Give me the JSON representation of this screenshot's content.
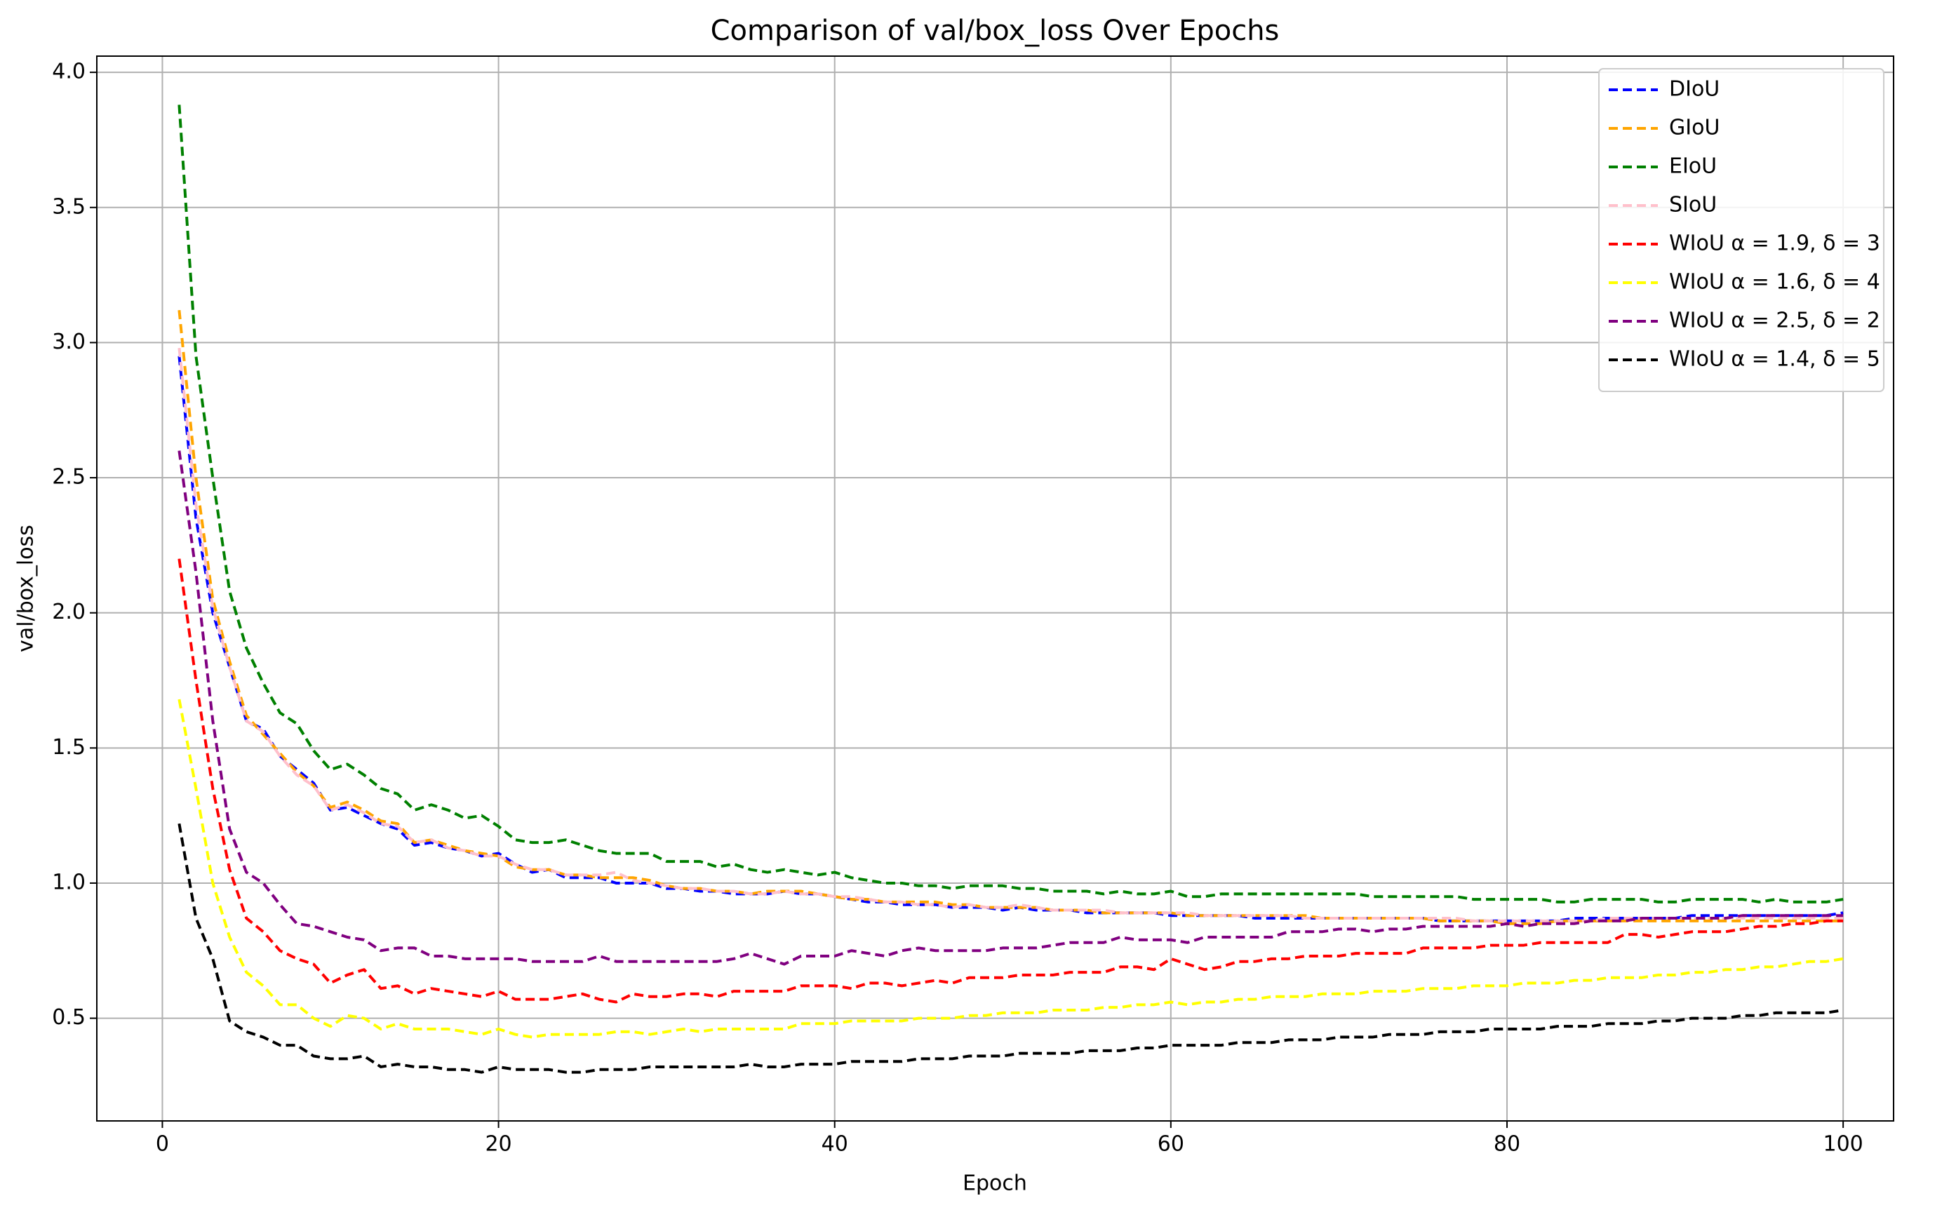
{
  "chart_data": {
    "type": "line",
    "title": "Comparison of val/box_loss Over Epochs",
    "xlabel": "Epoch",
    "ylabel": "val/box_loss",
    "x": [
      1,
      2,
      3,
      4,
      5,
      6,
      7,
      8,
      9,
      10,
      11,
      12,
      13,
      14,
      15,
      16,
      17,
      18,
      19,
      20,
      21,
      22,
      23,
      24,
      25,
      26,
      27,
      28,
      29,
      30,
      31,
      32,
      33,
      34,
      35,
      36,
      37,
      38,
      39,
      40,
      41,
      42,
      43,
      44,
      45,
      46,
      47,
      48,
      49,
      50,
      51,
      52,
      53,
      54,
      55,
      56,
      57,
      58,
      59,
      60,
      61,
      62,
      63,
      64,
      65,
      66,
      67,
      68,
      69,
      70,
      71,
      72,
      73,
      74,
      75,
      76,
      77,
      78,
      79,
      80,
      81,
      82,
      83,
      84,
      85,
      86,
      87,
      88,
      89,
      90,
      91,
      92,
      93,
      94,
      95,
      96,
      97,
      98,
      99,
      100
    ],
    "xlim": [
      -3.9,
      103
    ],
    "ylim": [
      0.12,
      4.06
    ],
    "xticks": [
      0,
      20,
      40,
      60,
      80,
      100
    ],
    "yticks": [
      0.5,
      {
        "value": 1,
        "label": "1.0"
      },
      1.5,
      {
        "value": 2,
        "label": "2.0"
      },
      2.5,
      {
        "value": 3,
        "label": "3.0"
      },
      3.5,
      {
        "value": 4,
        "label": "4.0"
      }
    ],
    "grid": true,
    "legend": "upper right",
    "line_style": "dashed",
    "series": [
      {
        "name": "DIoU",
        "color": "#0000ff",
        "values": [
          2.95,
          2.35,
          2.0,
          1.8,
          1.6,
          1.57,
          1.47,
          1.42,
          1.37,
          1.27,
          1.28,
          1.25,
          1.22,
          1.2,
          1.14,
          1.15,
          1.13,
          1.12,
          1.1,
          1.11,
          1.07,
          1.04,
          1.05,
          1.02,
          1.02,
          1.02,
          1.0,
          1.0,
          1.0,
          0.98,
          0.98,
          0.97,
          0.97,
          0.96,
          0.96,
          0.96,
          0.97,
          0.96,
          0.96,
          0.95,
          0.94,
          0.93,
          0.93,
          0.92,
          0.92,
          0.92,
          0.91,
          0.91,
          0.91,
          0.9,
          0.91,
          0.9,
          0.9,
          0.9,
          0.89,
          0.89,
          0.89,
          0.89,
          0.89,
          0.88,
          0.88,
          0.88,
          0.88,
          0.88,
          0.87,
          0.87,
          0.87,
          0.87,
          0.87,
          0.87,
          0.87,
          0.87,
          0.87,
          0.87,
          0.87,
          0.86,
          0.86,
          0.86,
          0.86,
          0.86,
          0.86,
          0.86,
          0.86,
          0.87,
          0.87,
          0.87,
          0.87,
          0.87,
          0.87,
          0.87,
          0.88,
          0.88,
          0.88,
          0.88,
          0.88,
          0.88,
          0.88,
          0.88,
          0.88,
          0.89
        ]
      },
      {
        "name": "GIoU",
        "color": "#ffa500",
        "values": [
          3.12,
          2.5,
          2.05,
          1.82,
          1.62,
          1.55,
          1.48,
          1.41,
          1.36,
          1.28,
          1.3,
          1.27,
          1.23,
          1.22,
          1.15,
          1.16,
          1.14,
          1.12,
          1.11,
          1.1,
          1.06,
          1.05,
          1.05,
          1.03,
          1.03,
          1.02,
          1.02,
          1.02,
          1.01,
          0.99,
          0.98,
          0.98,
          0.97,
          0.97,
          0.96,
          0.97,
          0.97,
          0.97,
          0.96,
          0.95,
          0.94,
          0.94,
          0.93,
          0.93,
          0.93,
          0.93,
          0.92,
          0.92,
          0.91,
          0.91,
          0.91,
          0.91,
          0.9,
          0.9,
          0.9,
          0.89,
          0.89,
          0.89,
          0.89,
          0.89,
          0.88,
          0.88,
          0.88,
          0.88,
          0.88,
          0.88,
          0.88,
          0.88,
          0.87,
          0.87,
          0.87,
          0.87,
          0.87,
          0.87,
          0.87,
          0.86,
          0.86,
          0.86,
          0.86,
          0.85,
          0.85,
          0.85,
          0.86,
          0.86,
          0.86,
          0.86,
          0.86,
          0.86,
          0.86,
          0.86,
          0.86,
          0.86,
          0.86,
          0.86,
          0.86,
          0.86,
          0.86,
          0.86,
          0.86,
          0.86
        ]
      },
      {
        "name": "EIoU",
        "color": "#008000",
        "values": [
          3.88,
          2.95,
          2.5,
          2.08,
          1.87,
          1.74,
          1.63,
          1.59,
          1.49,
          1.42,
          1.44,
          1.4,
          1.35,
          1.33,
          1.27,
          1.29,
          1.27,
          1.24,
          1.25,
          1.21,
          1.16,
          1.15,
          1.15,
          1.16,
          1.14,
          1.12,
          1.11,
          1.11,
          1.11,
          1.08,
          1.08,
          1.08,
          1.06,
          1.07,
          1.05,
          1.04,
          1.05,
          1.04,
          1.03,
          1.04,
          1.02,
          1.01,
          1.0,
          1.0,
          0.99,
          0.99,
          0.98,
          0.99,
          0.99,
          0.99,
          0.98,
          0.98,
          0.97,
          0.97,
          0.97,
          0.96,
          0.97,
          0.96,
          0.96,
          0.97,
          0.95,
          0.95,
          0.96,
          0.96,
          0.96,
          0.96,
          0.96,
          0.96,
          0.96,
          0.96,
          0.96,
          0.95,
          0.95,
          0.95,
          0.95,
          0.95,
          0.95,
          0.94,
          0.94,
          0.94,
          0.94,
          0.94,
          0.93,
          0.93,
          0.94,
          0.94,
          0.94,
          0.94,
          0.93,
          0.93,
          0.94,
          0.94,
          0.94,
          0.94,
          0.93,
          0.94,
          0.93,
          0.93,
          0.93,
          0.94
        ]
      },
      {
        "name": "SIoU",
        "color": "#ffc0cb",
        "values": [
          2.98,
          2.4,
          2.02,
          1.8,
          1.6,
          1.56,
          1.47,
          1.4,
          1.36,
          1.27,
          1.29,
          1.26,
          1.22,
          1.21,
          1.15,
          1.16,
          1.13,
          1.12,
          1.1,
          1.1,
          1.07,
          1.05,
          1.05,
          1.03,
          1.03,
          1.03,
          1.04,
          1.01,
          1.0,
          0.99,
          0.98,
          0.98,
          0.97,
          0.97,
          0.96,
          0.96,
          0.97,
          0.96,
          0.96,
          0.95,
          0.95,
          0.94,
          0.93,
          0.93,
          0.92,
          0.92,
          0.91,
          0.92,
          0.91,
          0.91,
          0.92,
          0.91,
          0.9,
          0.9,
          0.9,
          0.9,
          0.89,
          0.89,
          0.89,
          0.89,
          0.89,
          0.88,
          0.88,
          0.88,
          0.88,
          0.88,
          0.88,
          0.87,
          0.87,
          0.87,
          0.87,
          0.87,
          0.87,
          0.87,
          0.87,
          0.87,
          0.87,
          0.86,
          0.86,
          0.86,
          0.86,
          0.86,
          0.86,
          0.86,
          0.86,
          0.87,
          0.87,
          0.87,
          0.87,
          0.87,
          0.87,
          0.87,
          0.87,
          0.87,
          0.87,
          0.87,
          0.87,
          0.87,
          0.87,
          0.87
        ]
      },
      {
        "name": "WIoU α = 1.9,  δ = 3",
        "color": "#ff0000",
        "values": [
          2.2,
          1.75,
          1.35,
          1.05,
          0.87,
          0.82,
          0.75,
          0.72,
          0.7,
          0.63,
          0.66,
          0.68,
          0.61,
          0.62,
          0.59,
          0.61,
          0.6,
          0.59,
          0.58,
          0.6,
          0.57,
          0.57,
          0.57,
          0.58,
          0.59,
          0.57,
          0.56,
          0.59,
          0.58,
          0.58,
          0.59,
          0.59,
          0.58,
          0.6,
          0.6,
          0.6,
          0.6,
          0.62,
          0.62,
          0.62,
          0.61,
          0.63,
          0.63,
          0.62,
          0.63,
          0.64,
          0.63,
          0.65,
          0.65,
          0.65,
          0.66,
          0.66,
          0.66,
          0.67,
          0.67,
          0.67,
          0.69,
          0.69,
          0.68,
          0.72,
          0.7,
          0.68,
          0.69,
          0.71,
          0.71,
          0.72,
          0.72,
          0.73,
          0.73,
          0.73,
          0.74,
          0.74,
          0.74,
          0.74,
          0.76,
          0.76,
          0.76,
          0.76,
          0.77,
          0.77,
          0.77,
          0.78,
          0.78,
          0.78,
          0.78,
          0.78,
          0.81,
          0.81,
          0.8,
          0.81,
          0.82,
          0.82,
          0.82,
          0.83,
          0.84,
          0.84,
          0.85,
          0.85,
          0.86,
          0.86
        ]
      },
      {
        "name": "WIoU α = 1.6,  δ = 4",
        "color": "#ffff00",
        "values": [
          1.68,
          1.35,
          1.0,
          0.8,
          0.67,
          0.62,
          0.55,
          0.55,
          0.5,
          0.47,
          0.51,
          0.5,
          0.46,
          0.48,
          0.46,
          0.46,
          0.46,
          0.45,
          0.44,
          0.46,
          0.44,
          0.43,
          0.44,
          0.44,
          0.44,
          0.44,
          0.45,
          0.45,
          0.44,
          0.45,
          0.46,
          0.45,
          0.46,
          0.46,
          0.46,
          0.46,
          0.46,
          0.48,
          0.48,
          0.48,
          0.49,
          0.49,
          0.49,
          0.49,
          0.5,
          0.5,
          0.5,
          0.51,
          0.51,
          0.52,
          0.52,
          0.52,
          0.53,
          0.53,
          0.53,
          0.54,
          0.54,
          0.55,
          0.55,
          0.56,
          0.55,
          0.56,
          0.56,
          0.57,
          0.57,
          0.58,
          0.58,
          0.58,
          0.59,
          0.59,
          0.59,
          0.6,
          0.6,
          0.6,
          0.61,
          0.61,
          0.61,
          0.62,
          0.62,
          0.62,
          0.63,
          0.63,
          0.63,
          0.64,
          0.64,
          0.65,
          0.65,
          0.65,
          0.66,
          0.66,
          0.67,
          0.67,
          0.68,
          0.68,
          0.69,
          0.69,
          0.7,
          0.71,
          0.71,
          0.72
        ]
      },
      {
        "name": "WIoU α = 2.5,  δ = 2",
        "color": "#800080",
        "values": [
          2.6,
          2.15,
          1.6,
          1.2,
          1.04,
          1.0,
          0.92,
          0.85,
          0.84,
          0.82,
          0.8,
          0.79,
          0.75,
          0.76,
          0.76,
          0.73,
          0.73,
          0.72,
          0.72,
          0.72,
          0.72,
          0.71,
          0.71,
          0.71,
          0.71,
          0.73,
          0.71,
          0.71,
          0.71,
          0.71,
          0.71,
          0.71,
          0.71,
          0.72,
          0.74,
          0.72,
          0.7,
          0.73,
          0.73,
          0.73,
          0.75,
          0.74,
          0.73,
          0.75,
          0.76,
          0.75,
          0.75,
          0.75,
          0.75,
          0.76,
          0.76,
          0.76,
          0.77,
          0.78,
          0.78,
          0.78,
          0.8,
          0.79,
          0.79,
          0.79,
          0.78,
          0.8,
          0.8,
          0.8,
          0.8,
          0.8,
          0.82,
          0.82,
          0.82,
          0.83,
          0.83,
          0.82,
          0.83,
          0.83,
          0.84,
          0.84,
          0.84,
          0.84,
          0.84,
          0.85,
          0.84,
          0.85,
          0.85,
          0.85,
          0.86,
          0.86,
          0.86,
          0.87,
          0.87,
          0.87,
          0.87,
          0.87,
          0.87,
          0.88,
          0.88,
          0.88,
          0.88,
          0.88,
          0.88,
          0.88
        ]
      },
      {
        "name": "WIoU α = 1.4,  δ = 5",
        "color": "#000000",
        "values": [
          1.22,
          0.87,
          0.72,
          0.49,
          0.45,
          0.43,
          0.4,
          0.4,
          0.36,
          0.35,
          0.35,
          0.36,
          0.32,
          0.33,
          0.32,
          0.32,
          0.31,
          0.31,
          0.3,
          0.32,
          0.31,
          0.31,
          0.31,
          0.3,
          0.3,
          0.31,
          0.31,
          0.31,
          0.32,
          0.32,
          0.32,
          0.32,
          0.32,
          0.32,
          0.33,
          0.32,
          0.32,
          0.33,
          0.33,
          0.33,
          0.34,
          0.34,
          0.34,
          0.34,
          0.35,
          0.35,
          0.35,
          0.36,
          0.36,
          0.36,
          0.37,
          0.37,
          0.37,
          0.37,
          0.38,
          0.38,
          0.38,
          0.39,
          0.39,
          0.4,
          0.4,
          0.4,
          0.4,
          0.41,
          0.41,
          0.41,
          0.42,
          0.42,
          0.42,
          0.43,
          0.43,
          0.43,
          0.44,
          0.44,
          0.44,
          0.45,
          0.45,
          0.45,
          0.46,
          0.46,
          0.46,
          0.46,
          0.47,
          0.47,
          0.47,
          0.48,
          0.48,
          0.48,
          0.49,
          0.49,
          0.5,
          0.5,
          0.5,
          0.51,
          0.51,
          0.52,
          0.52,
          0.52,
          0.52,
          0.53
        ]
      }
    ]
  }
}
